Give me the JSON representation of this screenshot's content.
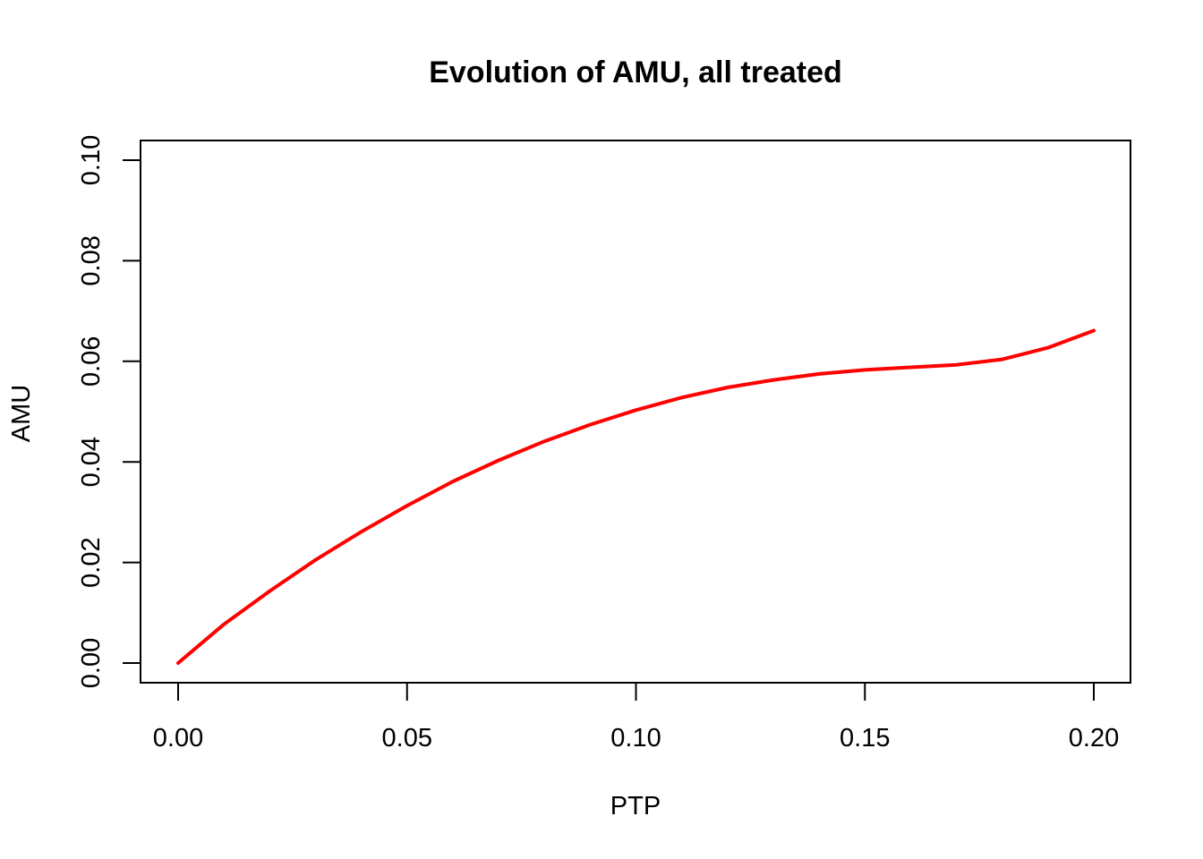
{
  "chart_data": {
    "type": "line",
    "title": "Evolution of AMU, all treated",
    "xlabel": "PTP",
    "ylabel": "AMU",
    "xlim": [
      0.0,
      0.2
    ],
    "ylim": [
      0.0,
      0.1
    ],
    "x_ticks": [
      "0.00",
      "0.05",
      "0.10",
      "0.15",
      "0.20"
    ],
    "y_ticks": [
      "0.00",
      "0.02",
      "0.04",
      "0.06",
      "0.08",
      "0.10"
    ],
    "grid": false,
    "legend": "none",
    "series": [
      {
        "color": "#ff0000",
        "x": [
          0.0,
          0.01,
          0.02,
          0.03,
          0.04,
          0.05,
          0.06,
          0.07,
          0.08,
          0.09,
          0.1,
          0.11,
          0.12,
          0.13,
          0.14,
          0.15,
          0.16,
          0.17,
          0.18,
          0.19,
          0.2
        ],
        "values": [
          0.0,
          0.0077,
          0.0143,
          0.0205,
          0.0261,
          0.0313,
          0.0361,
          0.0403,
          0.0441,
          0.0474,
          0.0503,
          0.0528,
          0.0548,
          0.0563,
          0.0575,
          0.0583,
          0.0588,
          0.0593,
          0.0604,
          0.0627,
          0.0661
        ]
      }
    ]
  }
}
